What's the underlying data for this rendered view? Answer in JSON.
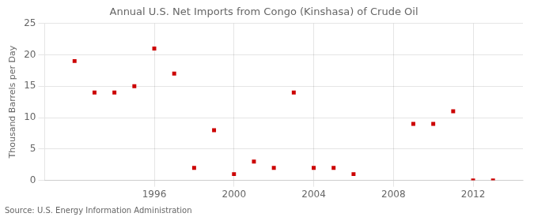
{
  "chart_data": {
    "type": "scatter",
    "title": "Annual U.S. Net Imports from Congo (Kinshasa) of Crude Oil",
    "ylabel": "Thousand Barrels per Day",
    "annotations": [
      "Source: U.S. Energy Information Administration"
    ],
    "x": [
      1992,
      1993,
      1994,
      1995,
      1996,
      1997,
      1998,
      1999,
      2000,
      2001,
      2002,
      2003,
      2004,
      2005,
      2006,
      2009,
      2010,
      2011,
      2012,
      2013
    ],
    "values": [
      19,
      14,
      14,
      15,
      21,
      17,
      2,
      8,
      1,
      3,
      2,
      14,
      2,
      2,
      1,
      9,
      9,
      11,
      0,
      0
    ],
    "color": "#cc0000",
    "marker": "square",
    "xlim": [
      1990.5,
      2014.5
    ],
    "xticks": [
      1996,
      2000,
      2004,
      2008,
      2012
    ],
    "ylim": [
      0,
      25
    ],
    "yticks": [
      0,
      5,
      10,
      15,
      20,
      25
    ],
    "grid": true
  }
}
